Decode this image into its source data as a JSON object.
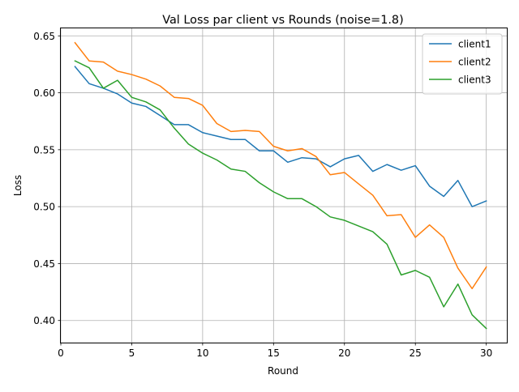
{
  "chart_data": {
    "type": "line",
    "title": "Val Loss par client vs Rounds (noise=1.8)",
    "xlabel": "Round",
    "ylabel": "Loss",
    "xlim": [
      0,
      31.45
    ],
    "ylim": [
      0.3806,
      0.6566
    ],
    "xticks": [
      0,
      5,
      10,
      15,
      20,
      25,
      30
    ],
    "xtick_labels": [
      "0",
      "5",
      "10",
      "15",
      "20",
      "25",
      "30"
    ],
    "yticks": [
      0.4,
      0.45,
      0.5,
      0.55,
      0.6,
      0.65
    ],
    "ytick_labels": [
      "0.40",
      "0.45",
      "0.50",
      "0.55",
      "0.60",
      "0.65"
    ],
    "grid": true,
    "legend_position": "upper right",
    "x": [
      1,
      2,
      3,
      4,
      5,
      6,
      7,
      8,
      9,
      10,
      11,
      12,
      13,
      14,
      15,
      16,
      17,
      18,
      19,
      20,
      21,
      22,
      23,
      24,
      25,
      26,
      27,
      28,
      29,
      30
    ],
    "series": [
      {
        "name": "client1",
        "color": "#1f77b4",
        "values": [
          0.623,
          0.608,
          0.604,
          0.599,
          0.591,
          0.588,
          0.58,
          0.572,
          0.572,
          0.565,
          0.562,
          0.559,
          0.559,
          0.549,
          0.549,
          0.539,
          0.543,
          0.542,
          0.535,
          0.542,
          0.545,
          0.531,
          0.537,
          0.532,
          0.536,
          0.518,
          0.509,
          0.523,
          0.5,
          0.505
        ]
      },
      {
        "name": "client2",
        "color": "#ff7f0e",
        "values": [
          0.644,
          0.628,
          0.627,
          0.619,
          0.616,
          0.612,
          0.606,
          0.596,
          0.595,
          0.589,
          0.573,
          0.566,
          0.567,
          0.566,
          0.553,
          0.549,
          0.551,
          0.544,
          0.528,
          0.53,
          0.52,
          0.51,
          0.492,
          0.493,
          0.473,
          0.484,
          0.473,
          0.446,
          0.428,
          0.447
        ]
      },
      {
        "name": "client3",
        "color": "#2ca02c",
        "values": [
          0.628,
          0.622,
          0.604,
          0.611,
          0.596,
          0.592,
          0.585,
          0.569,
          0.555,
          0.547,
          0.541,
          0.533,
          0.531,
          0.521,
          0.513,
          0.507,
          0.507,
          0.5,
          0.491,
          0.488,
          0.483,
          0.478,
          0.467,
          0.44,
          0.444,
          0.438,
          0.412,
          0.432,
          0.405,
          0.393
        ]
      }
    ]
  }
}
